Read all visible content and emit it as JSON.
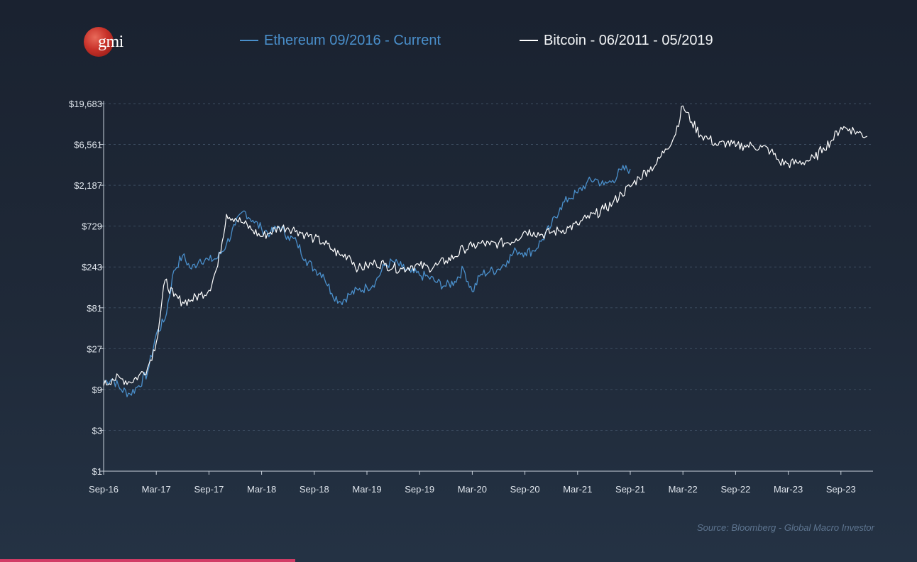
{
  "logo": {
    "text": "gmi"
  },
  "legend": {
    "ethereum": "Ethereum 09/2016 - Current",
    "bitcoin": "Bitcoin - 06/2011 - 05/2019"
  },
  "source": "Source: Bloomberg - Global Macro Investor",
  "chart_data": {
    "type": "line",
    "title": "",
    "xlabel": "",
    "ylabel": "",
    "x_ticks": [
      "Sep-16",
      "Mar-17",
      "Sep-17",
      "Mar-18",
      "Sep-18",
      "Mar-19",
      "Sep-19",
      "Mar-20",
      "Sep-20",
      "Mar-21",
      "Sep-21",
      "Mar-22",
      "Sep-22",
      "Mar-23",
      "Sep-23"
    ],
    "y_ticks": [
      {
        "value": 1,
        "label": "$1"
      },
      {
        "value": 3,
        "label": "$3"
      },
      {
        "value": 9,
        "label": "$9"
      },
      {
        "value": 27,
        "label": "$27"
      },
      {
        "value": 81,
        "label": "$81"
      },
      {
        "value": 243,
        "label": "$243"
      },
      {
        "value": 729,
        "label": "$729"
      },
      {
        "value": 2187,
        "label": "$2,187"
      },
      {
        "value": 6561,
        "label": "$6,561"
      },
      {
        "value": 19683,
        "label": "$19,683"
      }
    ],
    "y_scale": "log",
    "ylim": [
      1,
      19683
    ],
    "grid": "horizontal-dashed",
    "legend_position": "top",
    "colors": {
      "ethereum": "#4a8fcb",
      "bitcoin": "#ffffff"
    },
    "series": [
      {
        "name": "Ethereum 09/2016 - Current",
        "color": "#4a8fcb",
        "x": [
          "Sep-16",
          "Oct-16",
          "Nov-16",
          "Dec-16",
          "Jan-17",
          "Feb-17",
          "Mar-17",
          "Apr-17",
          "May-17",
          "Jun-17",
          "Jul-17",
          "Aug-17",
          "Sep-17",
          "Oct-17",
          "Nov-17",
          "Dec-17",
          "Jan-18",
          "Feb-18",
          "Mar-18",
          "Apr-18",
          "May-18",
          "Jun-18",
          "Jul-18",
          "Aug-18",
          "Sep-18",
          "Oct-18",
          "Nov-18",
          "Dec-18",
          "Jan-19",
          "Feb-19",
          "Mar-19",
          "Apr-19",
          "May-19",
          "Jun-19",
          "Jul-19",
          "Aug-19",
          "Sep-19",
          "Oct-19",
          "Nov-19",
          "Dec-19",
          "Jan-20",
          "Feb-20",
          "Mar-20",
          "Apr-20",
          "May-20",
          "Jun-20",
          "Jul-20",
          "Aug-20",
          "Sep-20",
          "Oct-20",
          "Nov-20",
          "Dec-20",
          "Jan-21",
          "Feb-21",
          "Mar-21",
          "Apr-21",
          "May-21",
          "Jun-21",
          "Jul-21",
          "Aug-21",
          "Sep-21"
        ],
        "values": [
          11,
          12,
          9,
          8,
          10,
          14,
          40,
          60,
          220,
          330,
          230,
          300,
          290,
          310,
          450,
          750,
          1100,
          850,
          680,
          600,
          720,
          560,
          470,
          300,
          230,
          200,
          120,
          95,
          115,
          130,
          140,
          165,
          250,
          280,
          240,
          210,
          195,
          185,
          160,
          145,
          165,
          230,
          125,
          200,
          215,
          230,
          290,
          380,
          360,
          375,
          510,
          740,
          1200,
          1550,
          1780,
          2300,
          2600,
          2200,
          2500,
          3300,
          3400
        ]
      },
      {
        "name": "Bitcoin - 06/2011 - 05/2019",
        "color": "#ffffff",
        "x": [
          "Sep-16",
          "Oct-16",
          "Nov-16",
          "Dec-16",
          "Jan-17",
          "Feb-17",
          "Mar-17",
          "Apr-17",
          "May-17",
          "Jun-17",
          "Jul-17",
          "Aug-17",
          "Sep-17",
          "Oct-17",
          "Nov-17",
          "Dec-17",
          "Jan-18",
          "Feb-18",
          "Mar-18",
          "Apr-18",
          "May-18",
          "Jun-18",
          "Jul-18",
          "Aug-18",
          "Sep-18",
          "Oct-18",
          "Nov-18",
          "Dec-18",
          "Jan-19",
          "Feb-19",
          "Mar-19",
          "Apr-19",
          "May-19",
          "Jun-19",
          "Jul-19",
          "Aug-19",
          "Sep-19",
          "Oct-19",
          "Nov-19",
          "Dec-19",
          "Jan-20",
          "Feb-20",
          "Mar-20",
          "Apr-20",
          "May-20",
          "Jun-20",
          "Jul-20",
          "Aug-20",
          "Sep-20",
          "Oct-20",
          "Nov-20",
          "Dec-20",
          "Jan-21",
          "Feb-21",
          "Mar-21",
          "Apr-21",
          "May-21",
          "Jun-21",
          "Jul-21",
          "Aug-21",
          "Sep-21",
          "Oct-21",
          "Nov-21",
          "Dec-21",
          "Jan-22",
          "Feb-22",
          "Mar-22",
          "Apr-22",
          "May-22",
          "Jun-22",
          "Jul-22",
          "Aug-22",
          "Sep-22",
          "Oct-22",
          "Nov-22",
          "Dec-22",
          "Jan-23",
          "Feb-23",
          "Mar-23",
          "Apr-23",
          "May-23",
          "Jun-23",
          "Jul-23",
          "Aug-23",
          "Sep-23",
          "Oct-23",
          "Nov-23",
          "Dec-23"
        ],
        "values": [
          10,
          12,
          12,
          11,
          13,
          16,
          32,
          170,
          110,
          95,
          100,
          115,
          130,
          250,
          1000,
          900,
          780,
          650,
          550,
          620,
          700,
          700,
          650,
          580,
          520,
          470,
          390,
          330,
          330,
          230,
          250,
          270,
          260,
          240,
          230,
          250,
          250,
          240,
          255,
          290,
          320,
          400,
          420,
          460,
          440,
          460,
          470,
          520,
          640,
          620,
          580,
          620,
          640,
          700,
          760,
          900,
          1000,
          1150,
          1350,
          1750,
          2100,
          2700,
          3300,
          3900,
          5800,
          8000,
          18500,
          12000,
          8500,
          7600,
          6400,
          6900,
          6200,
          6400,
          6300,
          6100,
          5500,
          4100,
          3900,
          4000,
          4200,
          4500,
          6000,
          7400,
          10400,
          10000,
          9000,
          8200
        ]
      }
    ]
  }
}
